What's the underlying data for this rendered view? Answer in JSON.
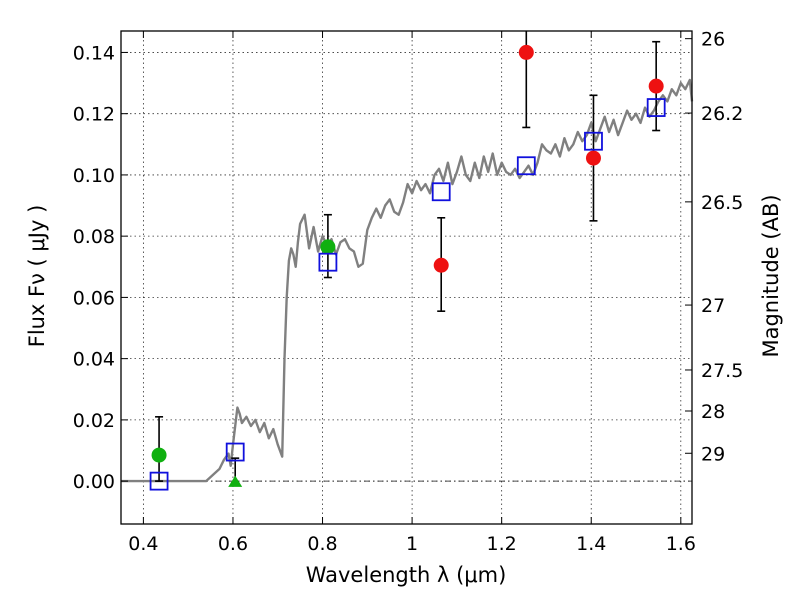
{
  "chart_data": {
    "type": "scatter",
    "xlabel": "Wavelength  λ (μm)",
    "ylabel": "Flux  Fν  ( μJy )",
    "ylabel_right": "Magnitude (AB)",
    "xlim": [
      0.35,
      1.625
    ],
    "ylim": [
      -0.014,
      0.147
    ],
    "grid": true,
    "x_ticks": [
      {
        "value": 0.4,
        "label": "0.4"
      },
      {
        "value": 0.6,
        "label": "0.6"
      },
      {
        "value": 0.8,
        "label": "0.8"
      },
      {
        "value": 1.0,
        "label": "1"
      },
      {
        "value": 1.2,
        "label": "1.2"
      },
      {
        "value": 1.4,
        "label": "1.4"
      },
      {
        "value": 1.6,
        "label": "1.6"
      }
    ],
    "y_ticks": [
      {
        "value": 0.0,
        "label": "0.00"
      },
      {
        "value": 0.02,
        "label": "0.02"
      },
      {
        "value": 0.04,
        "label": "0.04"
      },
      {
        "value": 0.06,
        "label": "0.06"
      },
      {
        "value": 0.08,
        "label": "0.08"
      },
      {
        "value": 0.1,
        "label": "0.10"
      },
      {
        "value": 0.12,
        "label": "0.12"
      },
      {
        "value": 0.14,
        "label": "0.14"
      }
    ],
    "right_ticks": [
      {
        "flux": 0.1445,
        "label": "26"
      },
      {
        "flux": 0.1202,
        "label": "26.2"
      },
      {
        "flux": 0.0912,
        "label": "26.5"
      },
      {
        "flux": 0.0575,
        "label": "27"
      },
      {
        "flux": 0.0363,
        "label": "27.5"
      },
      {
        "flux": 0.0229,
        "label": "28"
      },
      {
        "flux": 0.0091,
        "label": "29"
      }
    ],
    "model_spectrum": {
      "color": "#808080",
      "x": [
        0.35,
        0.54,
        0.555,
        0.57,
        0.58,
        0.59,
        0.595,
        0.6,
        0.605,
        0.61,
        0.615,
        0.62,
        0.63,
        0.64,
        0.65,
        0.66,
        0.67,
        0.68,
        0.69,
        0.7,
        0.71,
        0.715,
        0.72,
        0.725,
        0.73,
        0.735,
        0.74,
        0.745,
        0.75,
        0.76,
        0.77,
        0.78,
        0.79,
        0.8,
        0.81,
        0.82,
        0.83,
        0.84,
        0.85,
        0.86,
        0.87,
        0.88,
        0.89,
        0.9,
        0.91,
        0.92,
        0.93,
        0.94,
        0.95,
        0.96,
        0.97,
        0.98,
        0.99,
        1.0,
        1.01,
        1.02,
        1.03,
        1.04,
        1.05,
        1.06,
        1.07,
        1.08,
        1.09,
        1.1,
        1.11,
        1.12,
        1.13,
        1.14,
        1.15,
        1.16,
        1.17,
        1.18,
        1.19,
        1.2,
        1.21,
        1.22,
        1.23,
        1.24,
        1.25,
        1.26,
        1.27,
        1.28,
        1.29,
        1.3,
        1.31,
        1.32,
        1.33,
        1.34,
        1.35,
        1.36,
        1.37,
        1.38,
        1.39,
        1.4,
        1.41,
        1.42,
        1.43,
        1.44,
        1.45,
        1.46,
        1.47,
        1.48,
        1.49,
        1.5,
        1.51,
        1.52,
        1.53,
        1.54,
        1.55,
        1.56,
        1.57,
        1.58,
        1.59,
        1.6,
        1.61,
        1.62,
        1.625
      ],
      "y": [
        0.0,
        0.0,
        0.002,
        0.004,
        0.007,
        0.009,
        0.005,
        0.012,
        0.018,
        0.024,
        0.022,
        0.019,
        0.021,
        0.018,
        0.02,
        0.016,
        0.019,
        0.014,
        0.017,
        0.012,
        0.008,
        0.04,
        0.06,
        0.072,
        0.076,
        0.074,
        0.07,
        0.078,
        0.084,
        0.087,
        0.076,
        0.083,
        0.075,
        0.08,
        0.077,
        0.079,
        0.074,
        0.078,
        0.079,
        0.076,
        0.075,
        0.07,
        0.071,
        0.082,
        0.086,
        0.089,
        0.086,
        0.09,
        0.092,
        0.088,
        0.087,
        0.091,
        0.097,
        0.094,
        0.098,
        0.095,
        0.097,
        0.094,
        0.1,
        0.102,
        0.098,
        0.104,
        0.097,
        0.101,
        0.106,
        0.1,
        0.098,
        0.104,
        0.099,
        0.106,
        0.101,
        0.107,
        0.1,
        0.104,
        0.101,
        0.1,
        0.102,
        0.099,
        0.101,
        0.103,
        0.1,
        0.104,
        0.11,
        0.108,
        0.107,
        0.11,
        0.106,
        0.112,
        0.108,
        0.11,
        0.114,
        0.111,
        0.113,
        0.117,
        0.111,
        0.115,
        0.119,
        0.114,
        0.118,
        0.113,
        0.117,
        0.121,
        0.118,
        0.12,
        0.117,
        0.122,
        0.119,
        0.121,
        0.124,
        0.126,
        0.124,
        0.128,
        0.126,
        0.13,
        0.128,
        0.131,
        0.124
      ]
    },
    "series": [
      {
        "color": "#ee1111",
        "marker": "circle",
        "points": [
          {
            "x": 1.065,
            "y": 0.0705,
            "err_lo": 0.015,
            "err_hi": 0.0155
          },
          {
            "x": 1.255,
            "y": 0.14,
            "err_lo": 0.0245,
            "err_hi": 0.01
          },
          {
            "x": 1.405,
            "y": 0.1055,
            "err_lo": 0.0205,
            "err_hi": 0.0205
          },
          {
            "x": 1.545,
            "y": 0.129,
            "err_lo": 0.0145,
            "err_hi": 0.0145
          }
        ]
      },
      {
        "color": "#10b010",
        "marker": "circle",
        "points": [
          {
            "x": 0.435,
            "y": 0.0085,
            "err_lo": 0.0085,
            "err_hi": 0.0125
          },
          {
            "x": 0.812,
            "y": 0.0765,
            "err_lo": 0.01,
            "err_hi": 0.0105
          }
        ]
      },
      {
        "color": "#10b010",
        "marker": "triangle-up",
        "points": [
          {
            "x": 0.605,
            "y": -0.0005,
            "err_lo": 0.0,
            "err_hi": 0.008
          }
        ]
      },
      {
        "color": "#1010dd",
        "marker": "open-square",
        "points": [
          {
            "x": 0.435,
            "y": 0.0
          },
          {
            "x": 0.605,
            "y": 0.0095
          },
          {
            "x": 0.812,
            "y": 0.0715
          },
          {
            "x": 1.065,
            "y": 0.0945
          },
          {
            "x": 1.255,
            "y": 0.103
          },
          {
            "x": 1.405,
            "y": 0.111
          },
          {
            "x": 1.545,
            "y": 0.122
          }
        ]
      }
    ]
  }
}
